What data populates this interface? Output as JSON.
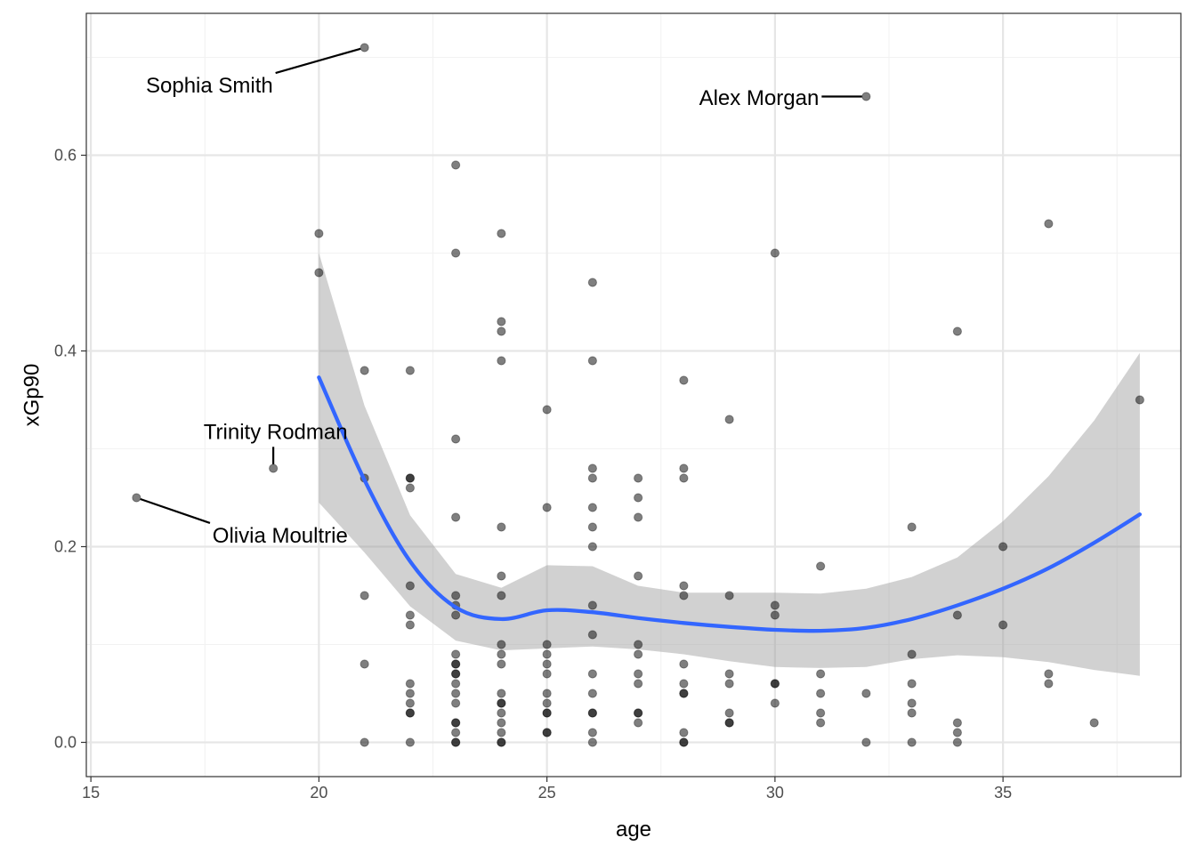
{
  "chart_data": {
    "type": "scatter",
    "xlabel": "age",
    "ylabel": "xGp90",
    "xlim": [
      14.9,
      38.9
    ],
    "ylim": [
      -0.035,
      0.745
    ],
    "x_ticks": [
      15,
      20,
      25,
      30,
      35
    ],
    "y_ticks": [
      0.0,
      0.2,
      0.4,
      0.6
    ],
    "x_tick_labels": [
      "15",
      "20",
      "25",
      "30",
      "35"
    ],
    "y_tick_labels": [
      "0.0",
      "0.2",
      "0.4",
      "0.6"
    ],
    "grid": true,
    "colors": {
      "points": "#000000",
      "smooth_line": "#3366FF",
      "confidence_band": "#999999",
      "grid_major": "#e6e6e6",
      "grid_minor": "#f2f2f2",
      "panel_border": "#333333"
    },
    "points": [
      [
        16,
        0.25
      ],
      [
        19,
        0.28
      ],
      [
        20,
        0.52
      ],
      [
        20,
        0.48
      ],
      [
        21,
        0.71
      ],
      [
        21,
        0.38
      ],
      [
        21,
        0.27
      ],
      [
        21,
        0.15
      ],
      [
        21,
        0.08
      ],
      [
        21,
        0.0
      ],
      [
        22,
        0.38
      ],
      [
        22,
        0.27
      ],
      [
        22,
        0.27
      ],
      [
        22,
        0.26
      ],
      [
        22,
        0.16
      ],
      [
        22,
        0.13
      ],
      [
        22,
        0.12
      ],
      [
        22,
        0.06
      ],
      [
        22,
        0.05
      ],
      [
        22,
        0.04
      ],
      [
        22,
        0.03
      ],
      [
        22,
        0.03
      ],
      [
        22,
        0.0
      ],
      [
        23,
        0.59
      ],
      [
        23,
        0.5
      ],
      [
        23,
        0.31
      ],
      [
        23,
        0.23
      ],
      [
        23,
        0.15
      ],
      [
        23,
        0.14
      ],
      [
        23,
        0.13
      ],
      [
        23,
        0.09
      ],
      [
        23,
        0.08
      ],
      [
        23,
        0.08
      ],
      [
        23,
        0.07
      ],
      [
        23,
        0.07
      ],
      [
        23,
        0.06
      ],
      [
        23,
        0.05
      ],
      [
        23,
        0.04
      ],
      [
        23,
        0.02
      ],
      [
        23,
        0.02
      ],
      [
        23,
        0.01
      ],
      [
        23,
        0.0
      ],
      [
        23,
        0.0
      ],
      [
        24,
        0.52
      ],
      [
        24,
        0.43
      ],
      [
        24,
        0.42
      ],
      [
        24,
        0.39
      ],
      [
        24,
        0.22
      ],
      [
        24,
        0.17
      ],
      [
        24,
        0.15
      ],
      [
        24,
        0.1
      ],
      [
        24,
        0.09
      ],
      [
        24,
        0.08
      ],
      [
        24,
        0.05
      ],
      [
        24,
        0.04
      ],
      [
        24,
        0.04
      ],
      [
        24,
        0.03
      ],
      [
        24,
        0.02
      ],
      [
        24,
        0.01
      ],
      [
        24,
        0.0
      ],
      [
        24,
        0.0
      ],
      [
        25,
        0.34
      ],
      [
        25,
        0.24
      ],
      [
        25,
        0.1
      ],
      [
        25,
        0.09
      ],
      [
        25,
        0.08
      ],
      [
        25,
        0.07
      ],
      [
        25,
        0.05
      ],
      [
        25,
        0.04
      ],
      [
        25,
        0.03
      ],
      [
        25,
        0.03
      ],
      [
        25,
        0.01
      ],
      [
        25,
        0.01
      ],
      [
        26,
        0.47
      ],
      [
        26,
        0.39
      ],
      [
        26,
        0.28
      ],
      [
        26,
        0.27
      ],
      [
        26,
        0.24
      ],
      [
        26,
        0.22
      ],
      [
        26,
        0.2
      ],
      [
        26,
        0.14
      ],
      [
        26,
        0.11
      ],
      [
        26,
        0.07
      ],
      [
        26,
        0.05
      ],
      [
        26,
        0.03
      ],
      [
        26,
        0.03
      ],
      [
        26,
        0.01
      ],
      [
        26,
        0.0
      ],
      [
        27,
        0.27
      ],
      [
        27,
        0.25
      ],
      [
        27,
        0.23
      ],
      [
        27,
        0.17
      ],
      [
        27,
        0.1
      ],
      [
        27,
        0.09
      ],
      [
        27,
        0.07
      ],
      [
        27,
        0.06
      ],
      [
        27,
        0.03
      ],
      [
        27,
        0.03
      ],
      [
        27,
        0.02
      ],
      [
        28,
        0.37
      ],
      [
        28,
        0.28
      ],
      [
        28,
        0.27
      ],
      [
        28,
        0.16
      ],
      [
        28,
        0.15
      ],
      [
        28,
        0.08
      ],
      [
        28,
        0.06
      ],
      [
        28,
        0.05
      ],
      [
        28,
        0.05
      ],
      [
        28,
        0.01
      ],
      [
        28,
        0.0
      ],
      [
        28,
        0.0
      ],
      [
        29,
        0.33
      ],
      [
        29,
        0.15
      ],
      [
        29,
        0.07
      ],
      [
        29,
        0.06
      ],
      [
        29,
        0.03
      ],
      [
        29,
        0.02
      ],
      [
        29,
        0.02
      ],
      [
        30,
        0.5
      ],
      [
        30,
        0.14
      ],
      [
        30,
        0.13
      ],
      [
        30,
        0.06
      ],
      [
        30,
        0.06
      ],
      [
        30,
        0.04
      ],
      [
        31,
        0.18
      ],
      [
        31,
        0.07
      ],
      [
        31,
        0.05
      ],
      [
        31,
        0.03
      ],
      [
        31,
        0.02
      ],
      [
        32,
        0.66
      ],
      [
        32,
        0.05
      ],
      [
        32,
        0.0
      ],
      [
        33,
        0.22
      ],
      [
        33,
        0.09
      ],
      [
        33,
        0.06
      ],
      [
        33,
        0.04
      ],
      [
        33,
        0.03
      ],
      [
        33,
        0.0
      ],
      [
        34,
        0.42
      ],
      [
        34,
        0.13
      ],
      [
        34,
        0.02
      ],
      [
        34,
        0.01
      ],
      [
        34,
        0.0
      ],
      [
        35,
        0.2
      ],
      [
        35,
        0.12
      ],
      [
        36,
        0.53
      ],
      [
        36,
        0.07
      ],
      [
        36,
        0.06
      ],
      [
        37,
        0.02
      ],
      [
        38,
        0.35
      ]
    ],
    "smooth": {
      "x": [
        20,
        21,
        22,
        23,
        24,
        25,
        26,
        27,
        28,
        29,
        30,
        31,
        32,
        33,
        34,
        35,
        36,
        37,
        38
      ],
      "y": [
        0.373,
        0.268,
        0.185,
        0.138,
        0.126,
        0.135,
        0.133,
        0.127,
        0.122,
        0.118,
        0.115,
        0.114,
        0.117,
        0.126,
        0.14,
        0.157,
        0.178,
        0.204,
        0.233
      ],
      "lower": [
        0.245,
        0.194,
        0.139,
        0.104,
        0.094,
        0.096,
        0.098,
        0.095,
        0.09,
        0.083,
        0.077,
        0.076,
        0.077,
        0.085,
        0.089,
        0.087,
        0.082,
        0.074,
        0.068
      ],
      "upper": [
        0.5,
        0.344,
        0.232,
        0.172,
        0.158,
        0.181,
        0.18,
        0.16,
        0.153,
        0.153,
        0.153,
        0.152,
        0.157,
        0.169,
        0.189,
        0.226,
        0.272,
        0.329,
        0.398
      ]
    },
    "annotations": [
      {
        "label": "Sophia Smith",
        "x": 21,
        "y": 0.71,
        "label_x": 17.6,
        "label_y": 0.671
      },
      {
        "label": "Alex Morgan",
        "x": 32,
        "y": 0.66,
        "label_x": 29.65,
        "label_y": 0.658
      },
      {
        "label": "Trinity Rodman",
        "x": 19,
        "y": 0.28,
        "label_x": 19.05,
        "label_y": 0.317
      },
      {
        "label": "Olivia Moultrie",
        "x": 16,
        "y": 0.25,
        "label_x": 19.15,
        "label_y": 0.211
      }
    ]
  }
}
